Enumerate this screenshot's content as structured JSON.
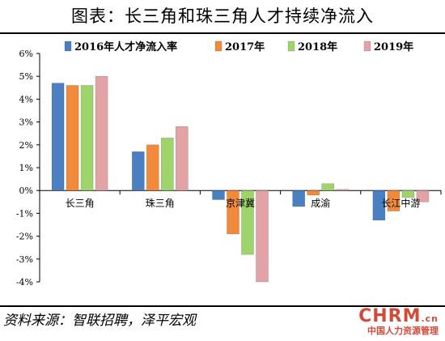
{
  "title": "图表：长三角和珠三角人才持续净流入",
  "source": "资料来源：智联招聘，泽平宏观",
  "watermark": {
    "logo": "CHRM",
    "logo_suffix": ".cn",
    "sub": "中国人力资源管理"
  },
  "colors": {
    "2016年人才净流入率": "#4a7fc1",
    "2017年": "#f28a3c",
    "2018年": "#9ed46b",
    "2019年": "#e3a3a6"
  },
  "chart_data": {
    "type": "bar",
    "categories": [
      "长三角",
      "珠三角",
      "京津冀",
      "成渝",
      "长江中游"
    ],
    "series": [
      {
        "name": "2016年人才净流入率",
        "values": [
          4.7,
          1.7,
          -0.4,
          -0.7,
          -1.3
        ]
      },
      {
        "name": "2017年",
        "values": [
          4.6,
          2.0,
          -1.9,
          -0.2,
          -0.9
        ]
      },
      {
        "name": "2018年",
        "values": [
          4.6,
          2.3,
          -2.8,
          0.3,
          -0.3
        ]
      },
      {
        "name": "2019年",
        "values": [
          5.0,
          2.8,
          -4.0,
          0.05,
          -0.5
        ]
      }
    ],
    "yticks": [
      "6%",
      "5%",
      "4%",
      "3%",
      "2%",
      "1%",
      "0%",
      "-1%",
      "-2%",
      "-3%",
      "-4%"
    ],
    "ylim": [
      -4,
      6
    ],
    "legend": "top",
    "grid": false
  }
}
